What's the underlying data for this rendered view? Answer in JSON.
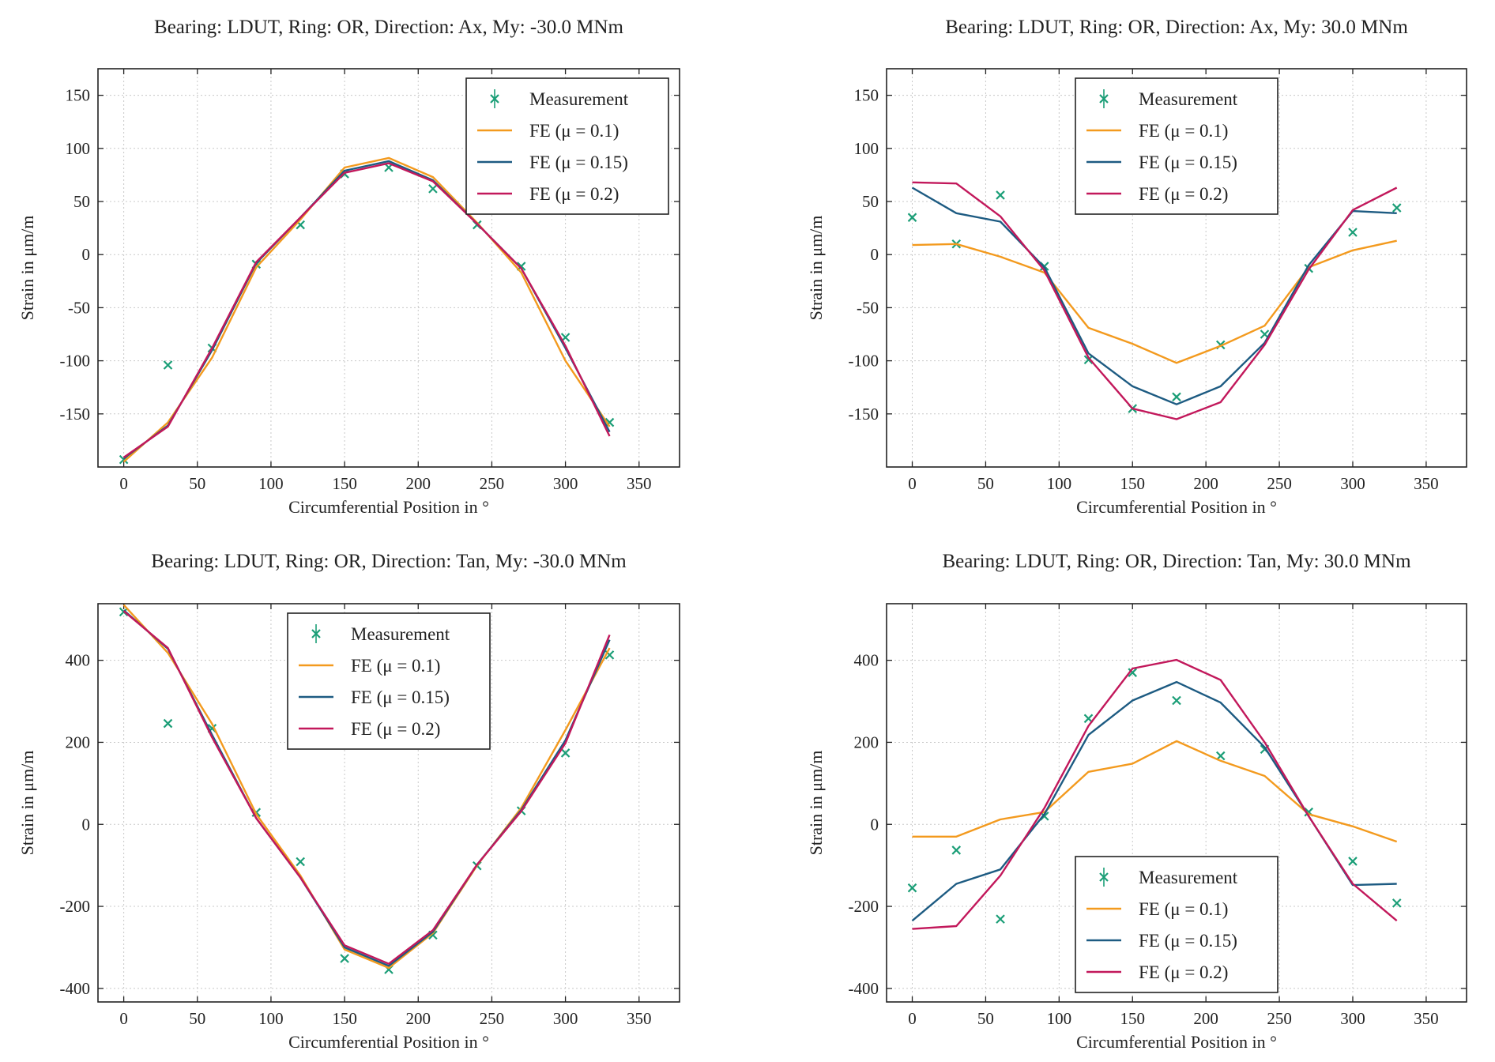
{
  "chart_data": [
    {
      "type": "line",
      "title": "Bearing: LDUT, Ring: OR, Direction: Ax, My: -30.0 MNm",
      "xlabel": "Circumferential Position in °",
      "ylabel": "Strain in μm/m",
      "x": [
        0,
        30,
        60,
        90,
        120,
        150,
        180,
        210,
        240,
        270,
        300,
        330
      ],
      "xlim": [
        -17.5,
        377.5
      ],
      "xticks": [
        0,
        50,
        100,
        150,
        200,
        250,
        300,
        350
      ],
      "ylim": [
        -200,
        175
      ],
      "yticks": [
        -150,
        -100,
        -50,
        0,
        50,
        100,
        150
      ],
      "grid": true,
      "legend": "upper right",
      "series": [
        {
          "name": "Measurement",
          "color": "#1b9e77",
          "marker": "x",
          "values": [
            -193,
            -104,
            -88,
            -9,
            28,
            76,
            82,
            62,
            28,
            -11,
            -78,
            -158
          ]
        },
        {
          "name": "FE (μ = 0.1)",
          "color": "#f39a1e",
          "values": [
            -195,
            -158,
            -97,
            -12,
            33,
            82,
            91,
            73,
            30,
            -17,
            -100,
            -162
          ]
        },
        {
          "name": "FE (μ = 0.15)",
          "color": "#1d5b82",
          "values": [
            -192,
            -161,
            -90,
            -8,
            35,
            79,
            88,
            70,
            29,
            -13,
            -88,
            -167
          ]
        },
        {
          "name": "FE (μ = 0.2)",
          "color": "#c2185b",
          "values": [
            -191,
            -162,
            -88,
            -7,
            35,
            77,
            86,
            69,
            29,
            -13,
            -86,
            -171
          ]
        }
      ]
    },
    {
      "type": "line",
      "title": "Bearing: LDUT, Ring: OR, Direction: Ax, My: 30.0 MNm",
      "xlabel": "Circumferential Position in °",
      "ylabel": "Strain in μm/m",
      "x": [
        0,
        30,
        60,
        90,
        120,
        150,
        180,
        210,
        240,
        270,
        300,
        330
      ],
      "xlim": [
        -17.5,
        377.5
      ],
      "xticks": [
        0,
        50,
        100,
        150,
        200,
        250,
        300,
        350
      ],
      "ylim": [
        -200,
        175
      ],
      "yticks": [
        -150,
        -100,
        -50,
        0,
        50,
        100,
        150
      ],
      "grid": true,
      "legend": "upper center",
      "series": [
        {
          "name": "Measurement",
          "color": "#1b9e77",
          "marker": "x",
          "values": [
            35,
            10,
            56,
            -11,
            -99,
            -145,
            -134,
            -85,
            -75,
            -13,
            21,
            44
          ]
        },
        {
          "name": "FE (μ = 0.1)",
          "color": "#f39a1e",
          "values": [
            9,
            10,
            -2,
            -17,
            -69,
            -84,
            -102,
            -86,
            -67,
            -12,
            4,
            13
          ]
        },
        {
          "name": "FE (μ = 0.15)",
          "color": "#1d5b82",
          "values": [
            63,
            39,
            31,
            -12,
            -93,
            -124,
            -141,
            -124,
            -83,
            -10,
            41,
            39
          ]
        },
        {
          "name": "FE (μ = 0.2)",
          "color": "#c2185b",
          "values": [
            68,
            67,
            36,
            -15,
            -97,
            -145,
            -155,
            -139,
            -85,
            -14,
            42,
            63
          ]
        }
      ]
    },
    {
      "type": "line",
      "title": "Bearing: LDUT, Ring: OR, Direction: Tan, My: -30.0 MNm",
      "xlabel": "Circumferential Position in °",
      "ylabel": "Strain in μm/m",
      "x": [
        0,
        30,
        60,
        90,
        120,
        150,
        180,
        210,
        240,
        270,
        300,
        330
      ],
      "xlim": [
        -17.5,
        377.5
      ],
      "xticks": [
        0,
        50,
        100,
        150,
        200,
        250,
        300,
        350
      ],
      "ylim": [
        -433,
        538
      ],
      "yticks": [
        -400,
        -200,
        0,
        200,
        400
      ],
      "grid": true,
      "legend": "upper center",
      "series": [
        {
          "name": "Measurement",
          "color": "#1b9e77",
          "marker": "x",
          "values": [
            518,
            246,
            234,
            29,
            -91,
            -327,
            -354,
            -270,
            -101,
            33,
            174,
            413
          ]
        },
        {
          "name": "FE (μ = 0.1)",
          "color": "#f39a1e",
          "values": [
            535,
            418,
            245,
            25,
            -125,
            -305,
            -350,
            -265,
            -100,
            40,
            230,
            430
          ]
        },
        {
          "name": "FE (μ = 0.15)",
          "color": "#1d5b82",
          "values": [
            522,
            428,
            218,
            15,
            -130,
            -300,
            -345,
            -262,
            -98,
            35,
            205,
            450
          ]
        },
        {
          "name": "FE (μ = 0.2)",
          "color": "#c2185b",
          "values": [
            520,
            430,
            212,
            15,
            -130,
            -295,
            -340,
            -258,
            -98,
            32,
            198,
            462
          ]
        }
      ]
    },
    {
      "type": "line",
      "title": "Bearing: LDUT, Ring: OR, Direction: Tan, My: 30.0 MNm",
      "xlabel": "Circumferential Position in °",
      "ylabel": "Strain in μm/m",
      "x": [
        0,
        30,
        60,
        90,
        120,
        150,
        180,
        210,
        240,
        270,
        300,
        330
      ],
      "xlim": [
        -17.5,
        377.5
      ],
      "xticks": [
        0,
        50,
        100,
        150,
        200,
        250,
        300,
        350
      ],
      "ylim": [
        -433,
        538
      ],
      "yticks": [
        -400,
        -200,
        0,
        200,
        400
      ],
      "grid": true,
      "legend": "lower center",
      "series": [
        {
          "name": "Measurement",
          "color": "#1b9e77",
          "marker": "x",
          "values": [
            -155,
            -63,
            -231,
            20,
            258,
            370,
            302,
            167,
            183,
            30,
            -90,
            -192
          ]
        },
        {
          "name": "FE (μ = 0.1)",
          "color": "#f39a1e",
          "values": [
            -30,
            -30,
            12,
            30,
            128,
            148,
            203,
            155,
            118,
            25,
            -5,
            -42
          ]
        },
        {
          "name": "FE (μ = 0.15)",
          "color": "#1d5b82",
          "values": [
            -235,
            -145,
            -110,
            25,
            218,
            302,
            347,
            297,
            188,
            20,
            -148,
            -145
          ]
        },
        {
          "name": "FE (μ = 0.2)",
          "color": "#c2185b",
          "values": [
            -255,
            -248,
            -125,
            40,
            240,
            380,
            401,
            352,
            200,
            20,
            -145,
            -235
          ]
        }
      ]
    }
  ]
}
